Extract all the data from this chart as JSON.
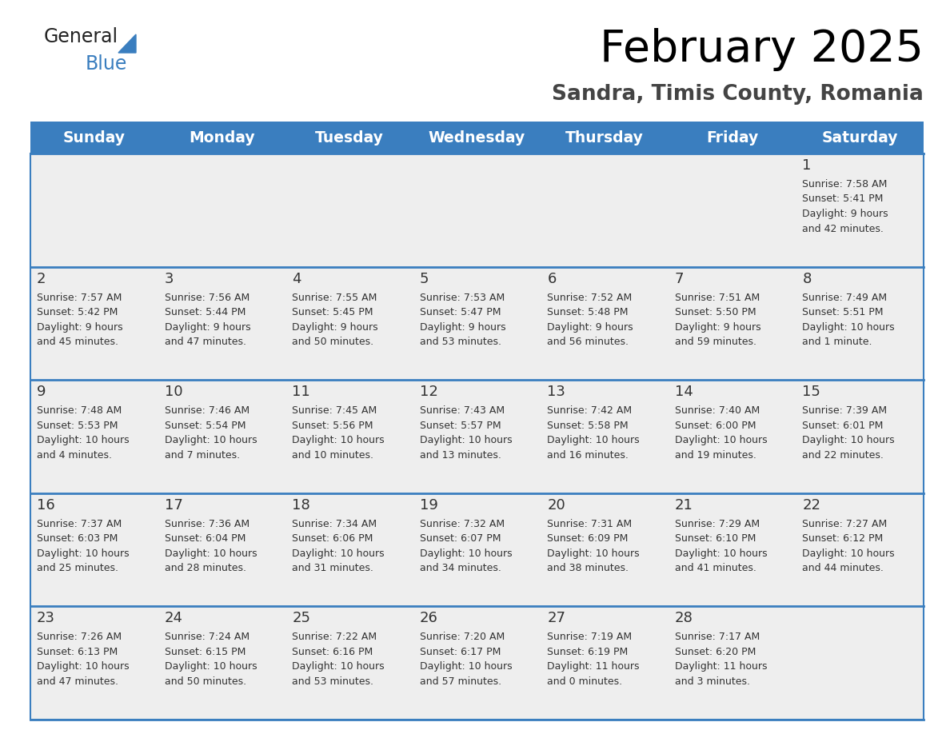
{
  "title": "February 2025",
  "subtitle": "Sandra, Timis County, Romania",
  "header_bg": "#3a7ebf",
  "header_text": "#ffffff",
  "cell_bg": "#eeeeee",
  "day_number_color": "#333333",
  "text_color": "#333333",
  "line_color": "#3a7ebf",
  "logo_general_color": "#222222",
  "logo_blue_color": "#3a7ebf",
  "logo_triangle_color": "#3a7ebf",
  "days_of_week": [
    "Sunday",
    "Monday",
    "Tuesday",
    "Wednesday",
    "Thursday",
    "Friday",
    "Saturday"
  ],
  "calendar": [
    [
      null,
      null,
      null,
      null,
      null,
      null,
      {
        "day": 1,
        "sunrise": "7:58 AM",
        "sunset": "5:41 PM",
        "daylight_hours": 9,
        "daylight_minutes": 42
      }
    ],
    [
      {
        "day": 2,
        "sunrise": "7:57 AM",
        "sunset": "5:42 PM",
        "daylight_hours": 9,
        "daylight_minutes": 45
      },
      {
        "day": 3,
        "sunrise": "7:56 AM",
        "sunset": "5:44 PM",
        "daylight_hours": 9,
        "daylight_minutes": 47
      },
      {
        "day": 4,
        "sunrise": "7:55 AM",
        "sunset": "5:45 PM",
        "daylight_hours": 9,
        "daylight_minutes": 50
      },
      {
        "day": 5,
        "sunrise": "7:53 AM",
        "sunset": "5:47 PM",
        "daylight_hours": 9,
        "daylight_minutes": 53
      },
      {
        "day": 6,
        "sunrise": "7:52 AM",
        "sunset": "5:48 PM",
        "daylight_hours": 9,
        "daylight_minutes": 56
      },
      {
        "day": 7,
        "sunrise": "7:51 AM",
        "sunset": "5:50 PM",
        "daylight_hours": 9,
        "daylight_minutes": 59
      },
      {
        "day": 8,
        "sunrise": "7:49 AM",
        "sunset": "5:51 PM",
        "daylight_hours": 10,
        "daylight_minutes": 1
      }
    ],
    [
      {
        "day": 9,
        "sunrise": "7:48 AM",
        "sunset": "5:53 PM",
        "daylight_hours": 10,
        "daylight_minutes": 4
      },
      {
        "day": 10,
        "sunrise": "7:46 AM",
        "sunset": "5:54 PM",
        "daylight_hours": 10,
        "daylight_minutes": 7
      },
      {
        "day": 11,
        "sunrise": "7:45 AM",
        "sunset": "5:56 PM",
        "daylight_hours": 10,
        "daylight_minutes": 10
      },
      {
        "day": 12,
        "sunrise": "7:43 AM",
        "sunset": "5:57 PM",
        "daylight_hours": 10,
        "daylight_minutes": 13
      },
      {
        "day": 13,
        "sunrise": "7:42 AM",
        "sunset": "5:58 PM",
        "daylight_hours": 10,
        "daylight_minutes": 16
      },
      {
        "day": 14,
        "sunrise": "7:40 AM",
        "sunset": "6:00 PM",
        "daylight_hours": 10,
        "daylight_minutes": 19
      },
      {
        "day": 15,
        "sunrise": "7:39 AM",
        "sunset": "6:01 PM",
        "daylight_hours": 10,
        "daylight_minutes": 22
      }
    ],
    [
      {
        "day": 16,
        "sunrise": "7:37 AM",
        "sunset": "6:03 PM",
        "daylight_hours": 10,
        "daylight_minutes": 25
      },
      {
        "day": 17,
        "sunrise": "7:36 AM",
        "sunset": "6:04 PM",
        "daylight_hours": 10,
        "daylight_minutes": 28
      },
      {
        "day": 18,
        "sunrise": "7:34 AM",
        "sunset": "6:06 PM",
        "daylight_hours": 10,
        "daylight_minutes": 31
      },
      {
        "day": 19,
        "sunrise": "7:32 AM",
        "sunset": "6:07 PM",
        "daylight_hours": 10,
        "daylight_minutes": 34
      },
      {
        "day": 20,
        "sunrise": "7:31 AM",
        "sunset": "6:09 PM",
        "daylight_hours": 10,
        "daylight_minutes": 38
      },
      {
        "day": 21,
        "sunrise": "7:29 AM",
        "sunset": "6:10 PM",
        "daylight_hours": 10,
        "daylight_minutes": 41
      },
      {
        "day": 22,
        "sunrise": "7:27 AM",
        "sunset": "6:12 PM",
        "daylight_hours": 10,
        "daylight_minutes": 44
      }
    ],
    [
      {
        "day": 23,
        "sunrise": "7:26 AM",
        "sunset": "6:13 PM",
        "daylight_hours": 10,
        "daylight_minutes": 47
      },
      {
        "day": 24,
        "sunrise": "7:24 AM",
        "sunset": "6:15 PM",
        "daylight_hours": 10,
        "daylight_minutes": 50
      },
      {
        "day": 25,
        "sunrise": "7:22 AM",
        "sunset": "6:16 PM",
        "daylight_hours": 10,
        "daylight_minutes": 53
      },
      {
        "day": 26,
        "sunrise": "7:20 AM",
        "sunset": "6:17 PM",
        "daylight_hours": 10,
        "daylight_minutes": 57
      },
      {
        "day": 27,
        "sunrise": "7:19 AM",
        "sunset": "6:19 PM",
        "daylight_hours": 11,
        "daylight_minutes": 0
      },
      {
        "day": 28,
        "sunrise": "7:17 AM",
        "sunset": "6:20 PM",
        "daylight_hours": 11,
        "daylight_minutes": 3
      },
      null
    ]
  ]
}
